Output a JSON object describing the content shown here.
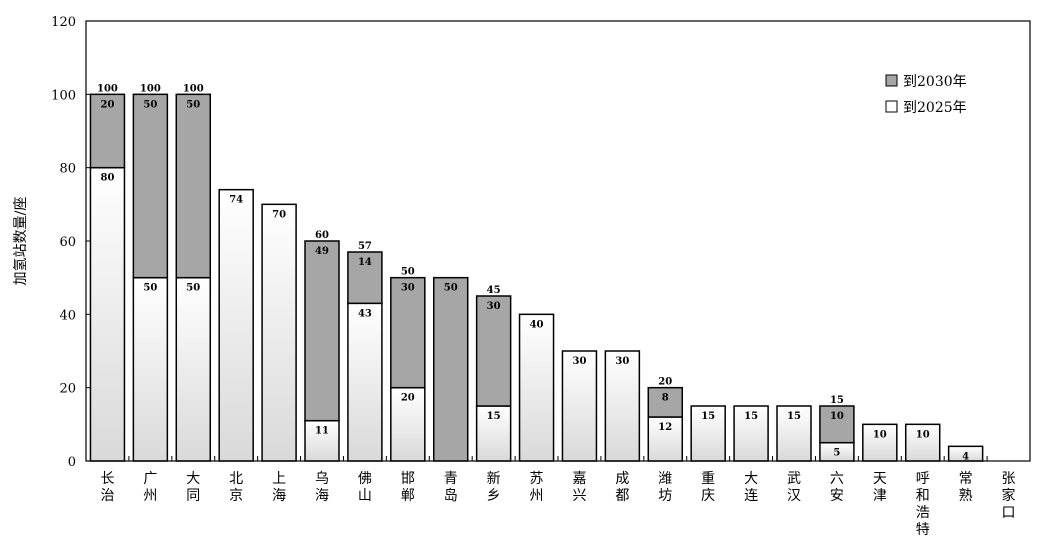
{
  "chart_data": {
    "type": "bar",
    "stacked": true,
    "title": "",
    "xlabel": "",
    "ylabel": "加氢站数量/座",
    "ylim": [
      0,
      120
    ],
    "yticks": [
      "0",
      "20",
      "40",
      "60",
      "80",
      "100",
      "120"
    ],
    "grid": false,
    "legend_position": "top-right",
    "categories": [
      "长治",
      "广州",
      "大同",
      "北京",
      "上海",
      "乌海",
      "佛山",
      "邯郸",
      "青岛",
      "新乡",
      "苏州",
      "嘉兴",
      "成都",
      "潍坊",
      "重庆",
      "大连",
      "武汉",
      "六安",
      "天津",
      "呼和浩特",
      "常熟",
      "张家口"
    ],
    "series": [
      {
        "name": "到2025年",
        "color": "#ffffff",
        "values": [
          80,
          50,
          50,
          74,
          70,
          11,
          43,
          20,
          0,
          15,
          40,
          30,
          30,
          12,
          15,
          15,
          15,
          5,
          10,
          10,
          4,
          0
        ],
        "labels": [
          "80",
          "50",
          "50",
          "74",
          "70",
          "11",
          "43",
          "20",
          "",
          "15",
          "40",
          "30",
          "30",
          "12",
          "15",
          "15",
          "15",
          "5",
          "10",
          "10",
          "4",
          ""
        ]
      },
      {
        "name": "到2030年",
        "color": "#a6a6a6",
        "values": [
          20,
          50,
          50,
          0,
          0,
          49,
          14,
          30,
          50,
          30,
          0,
          0,
          0,
          8,
          0,
          0,
          0,
          10,
          0,
          0,
          0,
          0
        ],
        "labels": [
          "20",
          "50",
          "50",
          "",
          "",
          "49",
          "14",
          "30",
          "50",
          "30",
          "",
          "",
          "",
          "8",
          "",
          "",
          "",
          "10",
          "",
          "",
          "",
          ""
        ]
      }
    ],
    "totals": [
      "100",
      "100",
      "100",
      "",
      "",
      "60",
      "57",
      "50",
      "",
      "45",
      "",
      "",
      "",
      "20",
      "",
      "",
      "",
      "15",
      "",
      "",
      "",
      ""
    ]
  }
}
